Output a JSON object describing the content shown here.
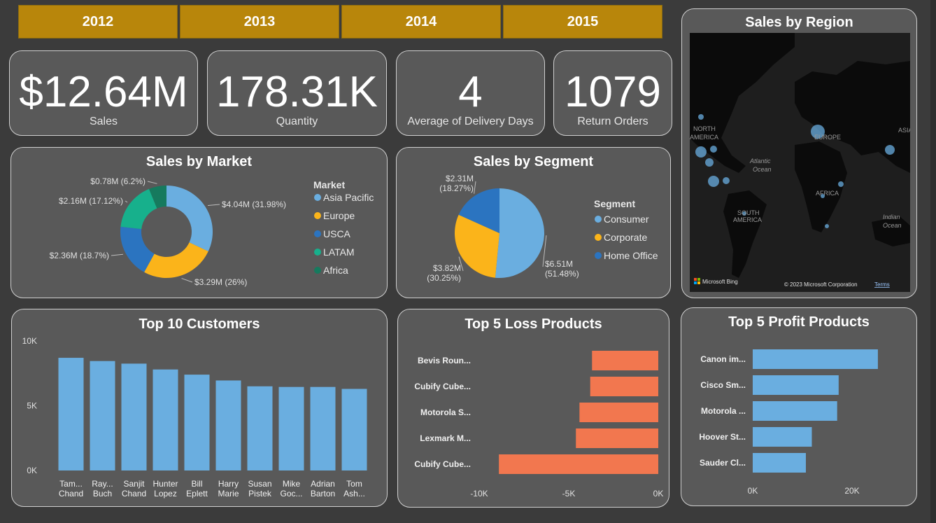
{
  "years": [
    "2012",
    "2013",
    "2014",
    "2015"
  ],
  "kpis": [
    {
      "value": "$12.64M",
      "label": "Sales"
    },
    {
      "value": "178.31K",
      "label": "Quantity"
    },
    {
      "value": "4",
      "label": "Average of Delivery Days"
    },
    {
      "value": "1079",
      "label": "Return Orders"
    }
  ],
  "colors": {
    "accent_gold": "#b8860b",
    "blue": "#6aaee0",
    "orange": "#f2774f",
    "card": "#595959"
  },
  "market": {
    "title": "Sales by Market",
    "legend_title": "Market",
    "chart_data": {
      "type": "pie",
      "donut": true,
      "categories": [
        "Asia Pacific",
        "Europe",
        "USCA",
        "LATAM",
        "Africa"
      ],
      "values": [
        4.04,
        3.29,
        2.36,
        2.16,
        0.78
      ],
      "labels": [
        "$4.04M (31.98%)",
        "$3.29M (26%)",
        "$2.36M (18.7%)",
        "$2.16M (17.12%)",
        "$0.78M (6.2%)"
      ],
      "colors": [
        "#6aaee0",
        "#fbb41a",
        "#2b74c0",
        "#17b08c",
        "#167a5e"
      ]
    }
  },
  "segment": {
    "title": "Sales by Segment",
    "legend_title": "Segment",
    "chart_data": {
      "type": "pie",
      "categories": [
        "Consumer",
        "Corporate",
        "Home Office"
      ],
      "values": [
        6.51,
        3.82,
        2.31
      ],
      "labels": [
        "$6.51M|(51.48%)",
        "$3.82M|(30.25%)",
        "$2.31M|(18.27%)"
      ],
      "colors": [
        "#6aaee0",
        "#fbb41a",
        "#2b74c0"
      ]
    }
  },
  "region": {
    "title": "Sales by Region",
    "map_labels": [
      "NORTH",
      "AMERICA",
      "EUROPE",
      "ASIA",
      "Atlantic",
      "Ocean",
      "AFRICA",
      "SOUTH",
      "AMERICA",
      "Indian",
      "Ocean"
    ],
    "bing": "Microsoft Bing",
    "copyright": "© 2023 Microsoft Corporation",
    "terms": "Terms"
  },
  "customers": {
    "title": "Top 10 Customers",
    "chart_data": {
      "type": "bar",
      "categories": [
        "Tam... Chand",
        "Ray... Buch",
        "Sanjit Chand",
        "Hunter Lopez",
        "Bill Eplett",
        "Harry Marie",
        "Susan Pistek",
        "Mike Goc...",
        "Adrian Barton",
        "Tom Ash..."
      ],
      "category_lines": [
        [
          "Tam...",
          "Chand"
        ],
        [
          "Ray...",
          "Buch"
        ],
        [
          "Sanjit",
          "Chand"
        ],
        [
          "Hunter",
          "Lopez"
        ],
        [
          "Bill",
          "Eplett"
        ],
        [
          "Harry",
          "Marie"
        ],
        [
          "Susan",
          "Pistek"
        ],
        [
          "Mike",
          "Goc..."
        ],
        [
          "Adrian",
          "Barton"
        ],
        [
          "Tom",
          "Ash..."
        ]
      ],
      "values": [
        8700,
        8450,
        8250,
        7800,
        7400,
        6950,
        6500,
        6450,
        6450,
        6300
      ],
      "ylim": [
        0,
        10000
      ],
      "yticks": [
        0,
        5000,
        10000
      ],
      "ytick_labels": [
        "0K",
        "5K",
        "10K"
      ],
      "color": "#6aaee0"
    }
  },
  "loss": {
    "title": "Top 5 Loss Products",
    "chart_data": {
      "type": "bar",
      "orientation": "horizontal",
      "categories": [
        "Bevis Roun...",
        "Cubify Cube...",
        "Motorola S...",
        "Lexmark M...",
        "Cubify Cube..."
      ],
      "values": [
        -3700,
        -3800,
        -4400,
        -4600,
        -8900
      ],
      "xlim": [
        -10000,
        0
      ],
      "xticks": [
        -10000,
        -5000,
        0
      ],
      "xtick_labels": [
        "-10K",
        "-5K",
        "0K"
      ],
      "color": "#f2774f"
    }
  },
  "profit": {
    "title": "Top 5 Profit Products",
    "chart_data": {
      "type": "bar",
      "orientation": "horizontal",
      "categories": [
        "Canon im...",
        "Cisco Sm...",
        "Motorola ...",
        "Hoover St...",
        "Sauder Cl..."
      ],
      "values": [
        25200,
        17300,
        17000,
        11900,
        10700
      ],
      "xlim": [
        0,
        30000
      ],
      "xticks": [
        0,
        20000
      ],
      "xtick_labels": [
        "0K",
        "20K"
      ],
      "color": "#6aaee0"
    }
  }
}
